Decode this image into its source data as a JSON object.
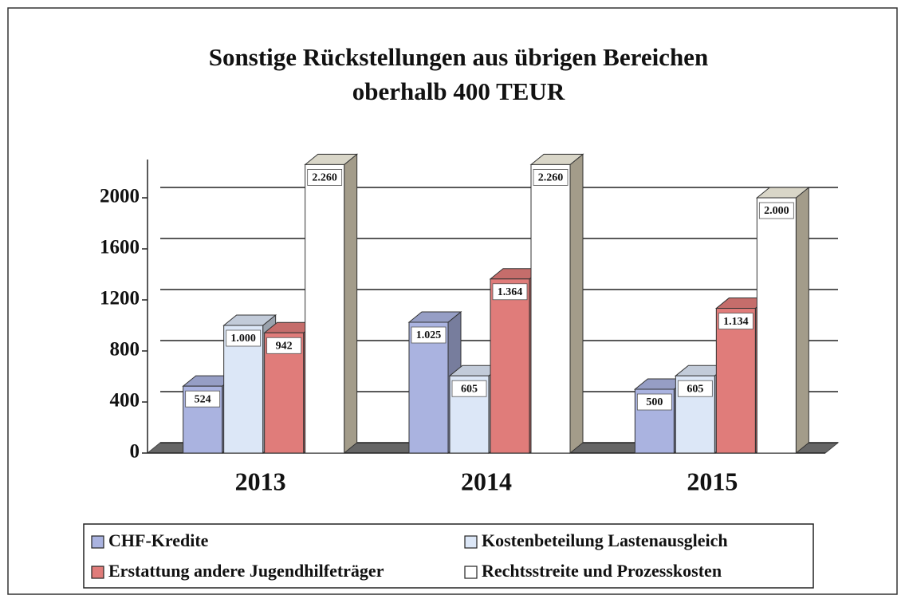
{
  "chart_data": {
    "type": "bar3d",
    "title": [
      "Sonstige Rückstellungen aus übrigen Bereichen",
      "oberhalb 400 TEUR"
    ],
    "categories": [
      "2013",
      "2014",
      "2015"
    ],
    "series": [
      {
        "name": "CHF-Kredite",
        "color": "#aab3e0",
        "values": [
          524,
          1025,
          500
        ],
        "value_labels": [
          "524",
          "1.025",
          "500"
        ]
      },
      {
        "name": "Kostenbeteilung Lastenausgleich",
        "color": "#dce7f7",
        "values": [
          1000,
          605,
          605
        ],
        "value_labels": [
          "1.000",
          "605",
          "605"
        ]
      },
      {
        "name": "Erstattung andere Jugendhilfeträger",
        "color": "#e07c7a",
        "values": [
          942,
          1364,
          1134
        ],
        "value_labels": [
          "942",
          "1.364",
          "1.134"
        ]
      },
      {
        "name": "Rechtsstreite und Prozesskosten",
        "color": "#ffffff",
        "values": [
          2260,
          2260,
          2000
        ],
        "value_labels": [
          "2.260",
          "2.260",
          "2.000"
        ]
      }
    ],
    "ylim": [
      0,
      2300
    ],
    "yticks": [
      0,
      400,
      800,
      1200,
      1600,
      2000
    ],
    "grid": true,
    "legend": "bottom"
  }
}
